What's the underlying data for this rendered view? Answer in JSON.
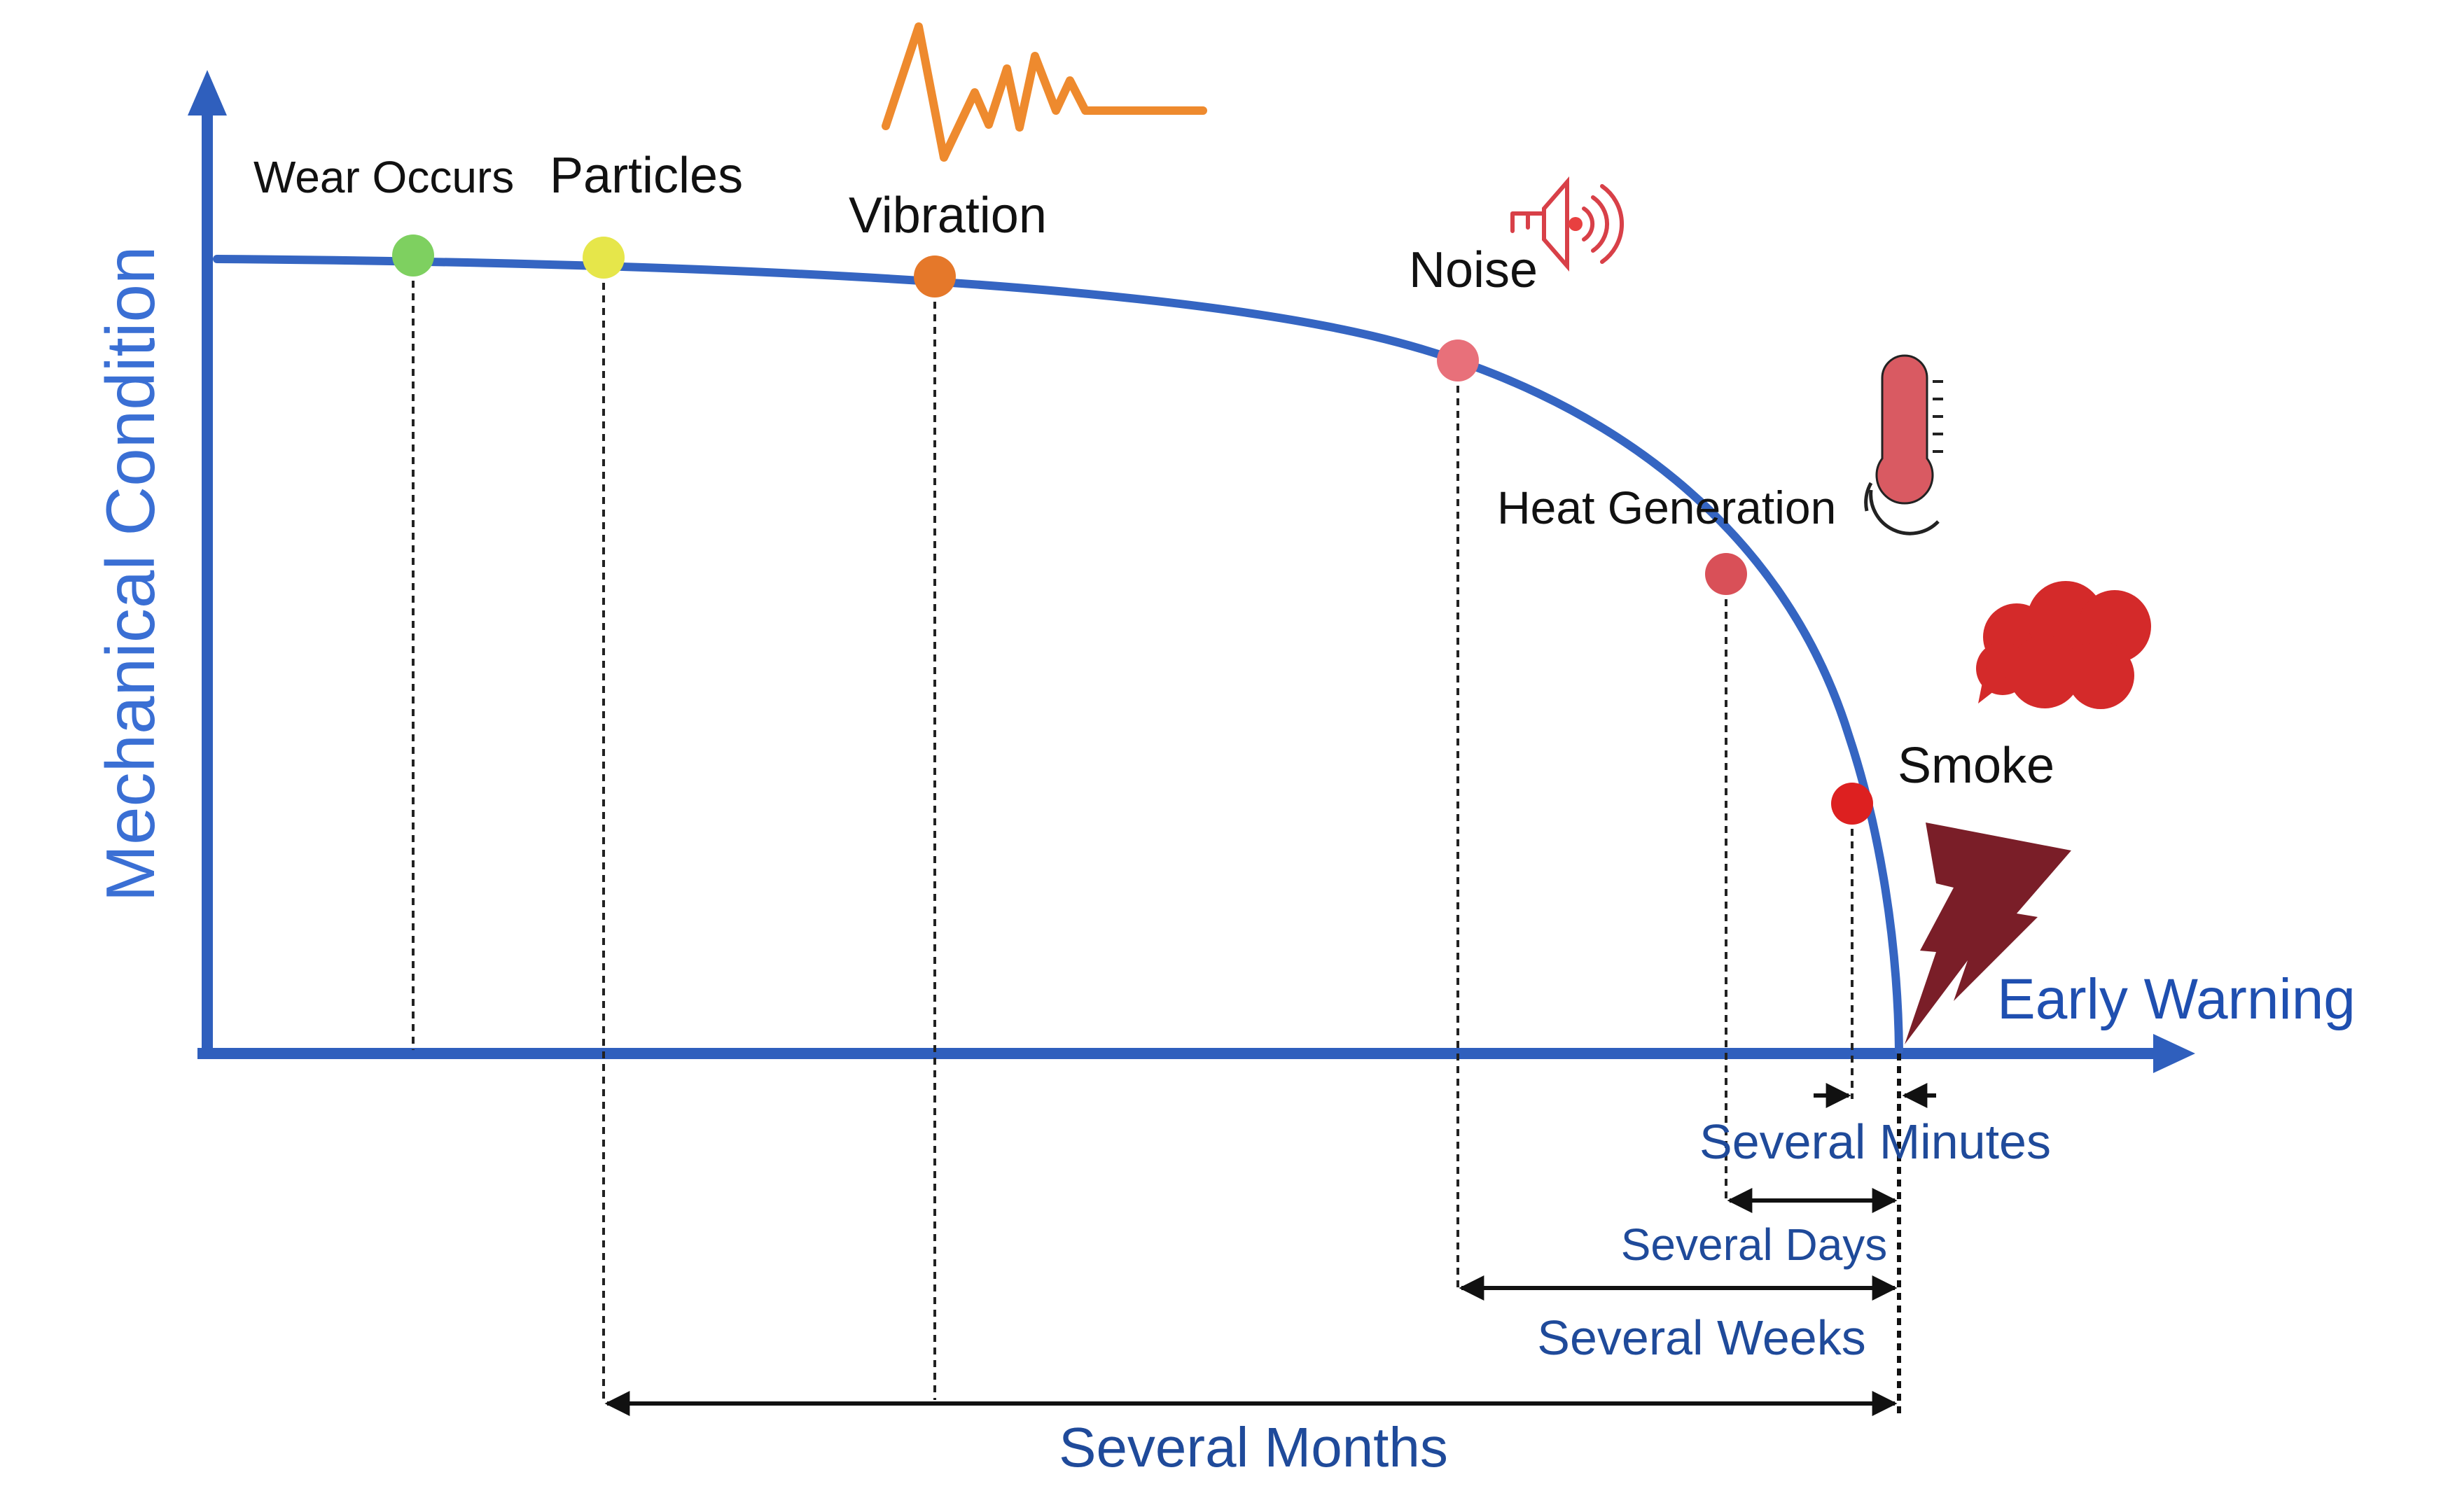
{
  "diagram": {
    "y_axis_label": "Mechanical Condition",
    "x_axis_end_label": "Early Warning",
    "colors": {
      "axis": "#2f5fbd",
      "curve": "#3565c2",
      "guide": "#222222",
      "span_text": "#1f4a9a"
    },
    "stages": [
      {
        "label": "Wear Occurs",
        "color": "#7ed060",
        "label_color": "#d0571d"
      },
      {
        "label": "Particles",
        "color": "#e6e64a",
        "label_color": "#111111"
      },
      {
        "label": "Vibration",
        "color": "#e5782a",
        "label_color": "#111111",
        "icon": "vibration-waveform-icon"
      },
      {
        "label": "Noise",
        "color": "#e8707a",
        "label_color": "#111111",
        "icon": "speaker-icon"
      },
      {
        "label": "Heat Generation",
        "color": "#d95058",
        "label_color": "#111111",
        "icon": "thermometer-icon"
      },
      {
        "label": "Smoke",
        "color": "#dd2020",
        "label_color": "#111111",
        "icon": "smoke-cloud-icon"
      }
    ],
    "failure_icon": "lightning-bolt-icon",
    "time_spans": [
      {
        "label": "Several Minutes"
      },
      {
        "label": "Several Days"
      },
      {
        "label": "Several Weeks"
      },
      {
        "label": "Several Months"
      }
    ]
  }
}
